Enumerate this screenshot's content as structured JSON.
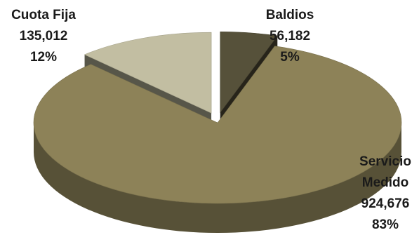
{
  "chart_data": {
    "type": "pie",
    "title": "",
    "slices": [
      {
        "label": "Baldios",
        "value": 56182,
        "value_text": "56,182",
        "percent_text": "5%",
        "color": "#56513a",
        "exploded": true
      },
      {
        "label": "Servicio Medido",
        "label_lines": [
          "Servicio",
          "Medido"
        ],
        "value": 924676,
        "value_text": "924,676",
        "percent_text": "83%",
        "color": "#8d8258",
        "exploded": false
      },
      {
        "label": "Cuota Fija",
        "value": 135012,
        "value_text": "135,012",
        "percent_text": "12%",
        "color": "#c2bea2",
        "exploded": true
      }
    ],
    "style": "3d-exploded",
    "legend": "none"
  }
}
